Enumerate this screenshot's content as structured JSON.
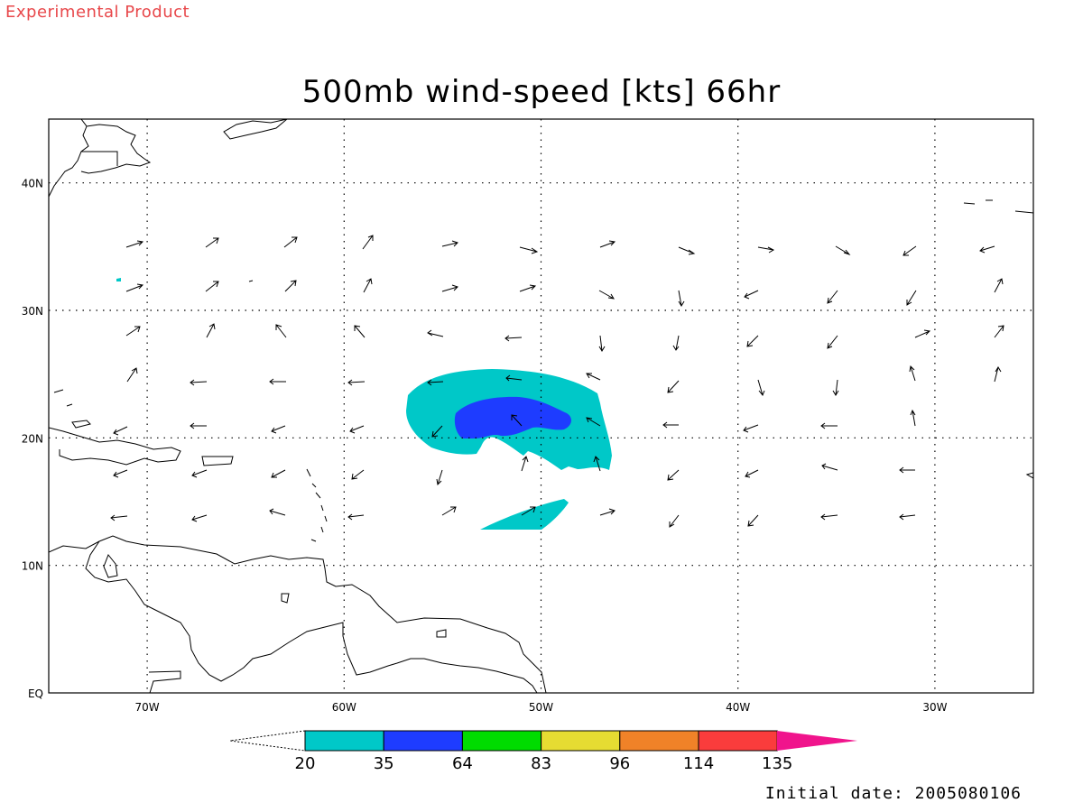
{
  "header": {
    "product_label": "Experimental Product",
    "title": "500mb wind-speed [kts] 66hr"
  },
  "map": {
    "lon_range": [
      -75,
      -25
    ],
    "lat_range": [
      0,
      45
    ],
    "lon_ticks": [
      {
        "lon": -70,
        "label": "70W"
      },
      {
        "lon": -60,
        "label": "60W"
      },
      {
        "lon": -50,
        "label": "50W"
      },
      {
        "lon": -40,
        "label": "40W"
      },
      {
        "lon": -30,
        "label": "30W"
      }
    ],
    "lat_ticks": [
      {
        "lat": 40,
        "label": "40N"
      },
      {
        "lat": 30,
        "label": "30N"
      },
      {
        "lat": 20,
        "label": "20N"
      },
      {
        "lat": 10,
        "label": "10N"
      },
      {
        "lat": 0,
        "label": "EQ"
      }
    ],
    "grid": "dotted"
  },
  "colorbar": {
    "labels": [
      "20",
      "35",
      "64",
      "83",
      "96",
      "114",
      "135"
    ],
    "colors": [
      "#00c8c8",
      "#1e3cff",
      "#00dc00",
      "#e6dc32",
      "#f08228",
      "#fa3c3c",
      "#f0148c"
    ]
  },
  "footer": {
    "initial_date": "Initial date: 2005080106"
  }
}
